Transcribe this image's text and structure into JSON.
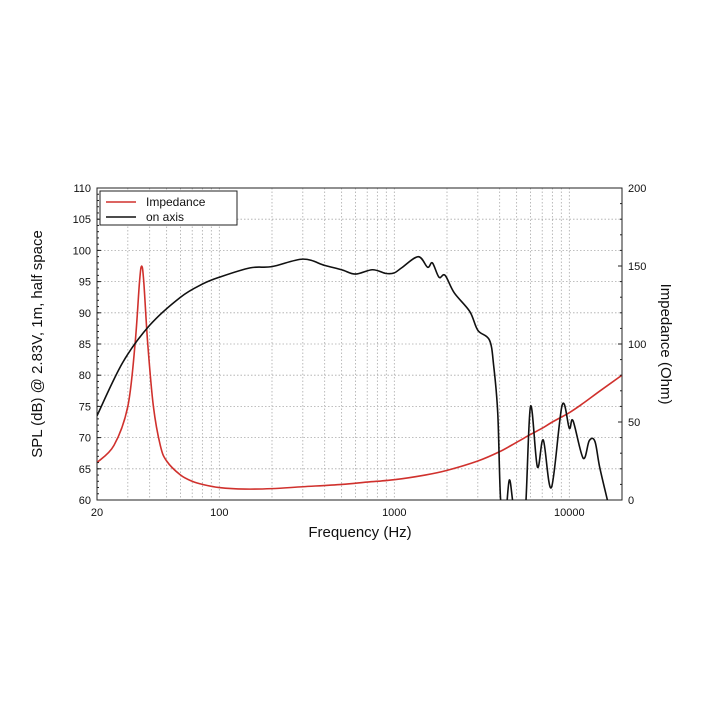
{
  "chart_data": {
    "type": "line",
    "xlabel": "Frequency (Hz)",
    "ylabel": "SPL (dB) @ 2.83V, 1m, half space",
    "y2label": "Impedance (Ohm)",
    "xscale": "log",
    "xlim": [
      20,
      20000
    ],
    "ylim": [
      60,
      110
    ],
    "y2lim": [
      0,
      200
    ],
    "xticks": [
      20,
      100,
      1000,
      10000
    ],
    "xtick_labels": [
      "20",
      "100",
      "1000",
      "10000"
    ],
    "yticks": [
      60,
      65,
      70,
      75,
      80,
      85,
      90,
      95,
      100,
      105,
      110
    ],
    "ytick_labels": [
      "60",
      "65",
      "70",
      "75",
      "80",
      "85",
      "90",
      "95",
      "100",
      "105",
      "110"
    ],
    "y2ticks": [
      0,
      50,
      100,
      150,
      200
    ],
    "y2tick_labels": [
      "0",
      "50",
      "100",
      "150",
      "200"
    ],
    "grid": true,
    "legend": {
      "position": "top-left",
      "entries": [
        "Impedance",
        "on axis"
      ]
    },
    "series": [
      {
        "name": "Impedance",
        "axis": "right",
        "color": "#d0312d",
        "x": [
          20,
          25,
          30,
          33,
          35,
          36,
          37,
          39,
          42,
          46,
          50,
          60,
          70,
          80,
          100,
          140,
          200,
          300,
          500,
          700,
          1000,
          1500,
          2000,
          3000,
          4000,
          5000,
          6000,
          7000,
          8000,
          10000,
          12000,
          15000,
          20000
        ],
        "y": [
          24,
          35,
          60,
          100,
          140,
          150,
          140,
          100,
          60,
          35,
          25,
          16,
          12,
          10,
          8,
          7,
          7.3,
          8.5,
          10,
          11.5,
          13,
          16,
          19,
          25,
          31,
          37,
          42,
          46,
          50,
          56,
          62,
          70,
          80
        ]
      },
      {
        "name": "on axis",
        "axis": "left",
        "color": "#111111",
        "x": [
          20,
          28,
          40,
          60,
          80,
          100,
          150,
          200,
          300,
          400,
          500,
          600,
          750,
          900,
          1000,
          1100,
          1370,
          1550,
          1650,
          1800,
          1950,
          2200,
          2700,
          3000,
          3500,
          3700,
          3900,
          4050,
          4300,
          4540,
          4800,
          5200,
          5600,
          6000,
          6570,
          7100,
          7900,
          9100,
          10000,
          10500,
          12000,
          13000,
          14000,
          14900,
          16500
        ],
        "y": [
          73.5,
          82,
          88,
          92.5,
          94.6,
          95.7,
          97.2,
          97.4,
          98.6,
          97.6,
          96.9,
          96.2,
          96.9,
          96.3,
          96.4,
          97.2,
          99,
          97.3,
          98,
          95.7,
          96,
          93.2,
          90.2,
          87.2,
          85.6,
          81.4,
          73.9,
          60,
          57,
          63.2,
          59,
          56,
          58,
          75,
          65.3,
          69.6,
          62,
          75.2,
          71.5,
          72.7,
          66.7,
          69.5,
          69.4,
          65.3,
          60
        ]
      }
    ]
  }
}
